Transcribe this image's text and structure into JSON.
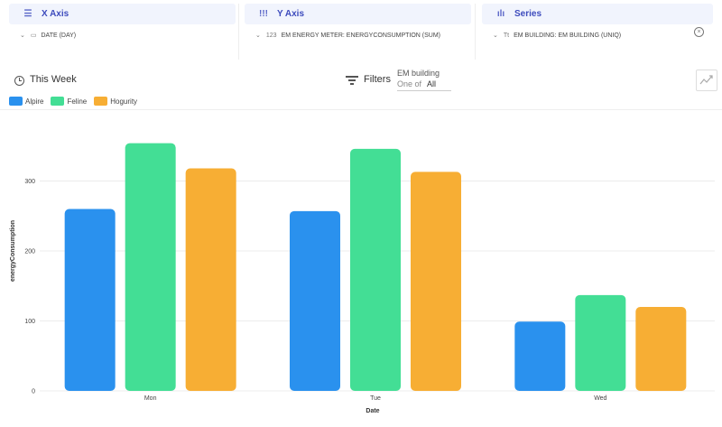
{
  "panels": {
    "x_axis": {
      "title": "X Axis",
      "value": "DATE (DAY)",
      "icon": "list-icon"
    },
    "y_axis": {
      "title": "Y Axis",
      "value": "EM ENERGY METER: ENERGYCONSUMPTION (SUM)",
      "type_badge": "123",
      "icon": "bars-icon"
    },
    "series": {
      "title": "Series",
      "value": "EM BUILDING: EM BUILDING (UNIQ)",
      "type_badge": "Tt",
      "icon": "series-icon"
    }
  },
  "toolbar": {
    "time_range": "This Week",
    "filters_label": "Filters",
    "filter_field": "EM building",
    "filter_op": "One of",
    "filter_value": "All"
  },
  "colors": {
    "accent": "#3d4bbd",
    "panel_bg": "#f1f4fd"
  },
  "chart_data": {
    "type": "bar",
    "categories": [
      "Mon",
      "Tue",
      "Wed"
    ],
    "series": [
      {
        "name": "Alpire",
        "color": "#2a91ee",
        "values": [
          260,
          257,
          99
        ]
      },
      {
        "name": "Feline",
        "color": "#43de95",
        "values": [
          354,
          346,
          137
        ]
      },
      {
        "name": "Hogurity",
        "color": "#f7ae34",
        "values": [
          318,
          313,
          120
        ]
      }
    ],
    "xlabel": "Date",
    "ylabel": "energyConsumption",
    "yticks": [
      0,
      100,
      200,
      300
    ],
    "ylim": [
      0,
      400
    ],
    "grid": true,
    "legend": "top-left"
  }
}
